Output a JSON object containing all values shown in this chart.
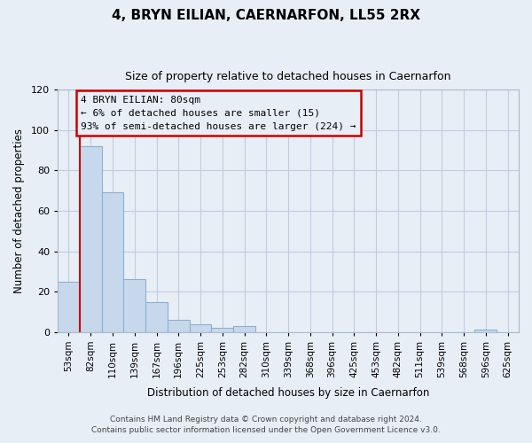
{
  "title": "4, BRYN EILIAN, CAERNARFON, LL55 2RX",
  "subtitle": "Size of property relative to detached houses in Caernarfon",
  "xlabel": "Distribution of detached houses by size in Caernarfon",
  "ylabel": "Number of detached properties",
  "bar_labels": [
    "53sqm",
    "82sqm",
    "110sqm",
    "139sqm",
    "167sqm",
    "196sqm",
    "225sqm",
    "253sqm",
    "282sqm",
    "310sqm",
    "339sqm",
    "368sqm",
    "396sqm",
    "425sqm",
    "453sqm",
    "482sqm",
    "511sqm",
    "539sqm",
    "568sqm",
    "596sqm",
    "625sqm"
  ],
  "bar_values": [
    25,
    92,
    69,
    26,
    15,
    6,
    4,
    2,
    3,
    0,
    0,
    0,
    0,
    0,
    0,
    0,
    0,
    0,
    0,
    1,
    0
  ],
  "bar_color": "#c8d8ec",
  "bar_edge_color": "#8ab0d0",
  "annotation_box_text": "4 BRYN EILIAN: 80sqm\n← 6% of detached houses are smaller (15)\n93% of semi-detached houses are larger (224) →",
  "annotation_box_edge_color": "#cc0000",
  "ylim": [
    0,
    120
  ],
  "yticks": [
    0,
    20,
    40,
    60,
    80,
    100,
    120
  ],
  "footer_line1": "Contains HM Land Registry data © Crown copyright and database right 2024.",
  "footer_line2": "Contains public sector information licensed under the Open Government Licence v3.0.",
  "bg_color": "#e8eef6",
  "plot_bg_color": "#e8eef6",
  "grid_color": "#c0cce0"
}
